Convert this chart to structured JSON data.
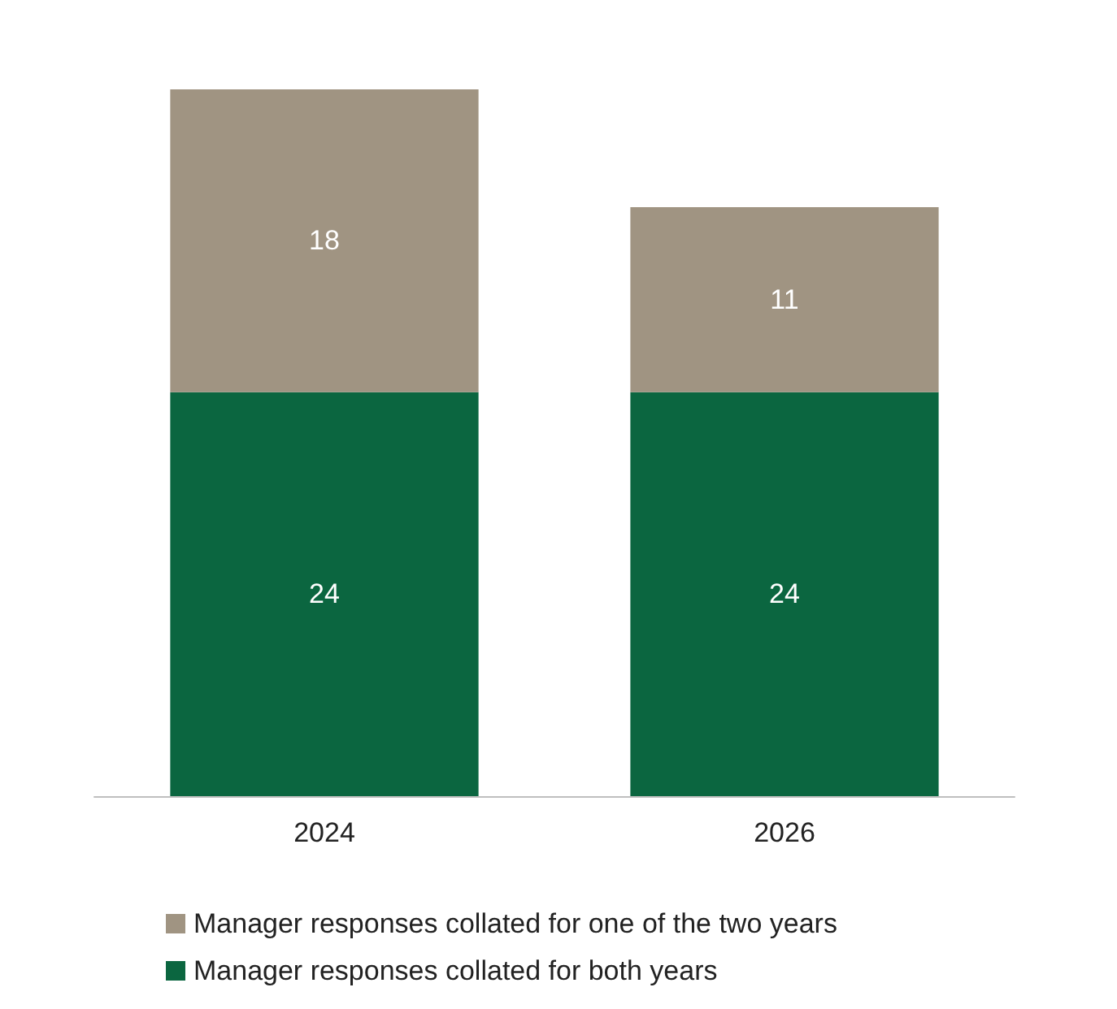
{
  "chart_data": {
    "type": "bar",
    "stacked": true,
    "categories": [
      "2024",
      "2026"
    ],
    "series": [
      {
        "name": "Manager responses collated for both years",
        "color": "#0b6640",
        "values": [
          24,
          24
        ]
      },
      {
        "name": "Manager responses collated for one of the two years",
        "color": "#a09482",
        "values": [
          18,
          11
        ]
      }
    ],
    "data_labels": true,
    "legend": "bottom"
  }
}
